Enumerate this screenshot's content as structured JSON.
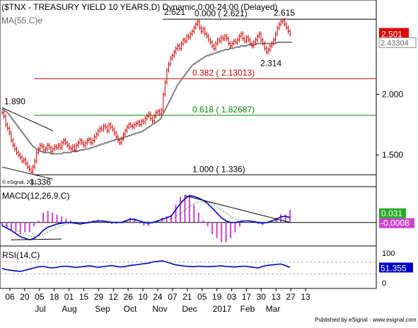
{
  "header": {
    "title": "($TNX - TREASURY YIELD 10 YEARS,D) Dynamic,0:00-24:00 (Delayed)",
    "ma_label": "MA(55,C)e",
    "copyright": "© eSignal, 2011"
  },
  "footer": {
    "credit": "Published by eSignal - www.esignal.com"
  },
  "colors": {
    "price": "#cc0000",
    "ma": "#808080",
    "fib_red": "#cc0000",
    "fib_green": "#008800",
    "macd": "#0000cc",
    "signal": "#33aa33",
    "histogram": "#cc44cc",
    "rsi": "#0000cc",
    "axis_badge_red": "#dd0000",
    "axis_badge_green": "#22aa22",
    "axis_badge_blue": "#0000cc"
  },
  "chart_data": [
    {
      "type": "candlestick",
      "title": "($TNX - TREASURY YIELD 10 YEARS,D) Dynamic,0:00-24:00 (Delayed)",
      "ylim": [
        1.25,
        2.75
      ],
      "y_ticks": [
        "1.500",
        "2.000"
      ],
      "last_price": "2.501",
      "ma_last": "2.43304",
      "x_ticks": [
        "06",
        "20",
        "05",
        "18",
        "01",
        "15",
        "29",
        "12",
        "26",
        "10",
        "24",
        "07",
        "21",
        "05",
        "19",
        "03",
        "17",
        "30",
        "13",
        "27",
        "13"
      ],
      "month_labels": [
        "Jul",
        "Aug",
        "Sep",
        "Oct",
        "Nov",
        "Dec",
        "2017",
        "Feb",
        "Mar"
      ],
      "series": [
        {
          "name": "$TNX",
          "close": [
            1.85,
            1.82,
            1.75,
            1.72,
            1.68,
            1.62,
            1.58,
            1.55,
            1.52,
            1.5,
            1.48,
            1.45,
            1.46,
            1.43,
            1.4,
            1.38,
            1.36,
            1.4,
            1.45,
            1.52,
            1.55,
            1.58,
            1.57,
            1.54,
            1.55,
            1.58,
            1.56,
            1.53,
            1.55,
            1.57,
            1.56,
            1.58,
            1.56,
            1.6,
            1.62,
            1.6,
            1.58,
            1.56,
            1.55,
            1.57,
            1.54,
            1.58,
            1.6,
            1.62,
            1.6,
            1.58,
            1.6,
            1.62,
            1.63,
            1.6,
            1.62,
            1.65,
            1.67,
            1.7,
            1.72,
            1.71,
            1.74,
            1.73,
            1.7,
            1.75,
            1.73,
            1.71,
            1.68,
            1.65,
            1.62,
            1.6,
            1.63,
            1.67,
            1.7,
            1.73,
            1.75,
            1.74,
            1.73,
            1.75,
            1.76,
            1.77,
            1.75,
            1.78,
            1.77,
            1.8,
            1.82,
            1.84,
            1.8,
            1.78,
            1.82,
            1.85,
            1.86,
            1.84,
            1.87,
            2.0,
            2.1,
            2.2,
            2.25,
            2.3,
            2.32,
            2.35,
            2.38,
            2.4,
            2.38,
            2.42,
            2.45,
            2.44,
            2.48,
            2.47,
            2.5,
            2.52,
            2.55,
            2.58,
            2.6,
            2.55,
            2.52,
            2.54,
            2.5,
            2.48,
            2.45,
            2.43,
            2.4,
            2.38,
            2.42,
            2.45,
            2.44,
            2.47,
            2.46,
            2.48,
            2.46,
            2.42,
            2.4,
            2.42,
            2.44,
            2.43,
            2.45,
            2.48,
            2.5,
            2.46,
            2.44,
            2.47,
            2.45,
            2.42,
            2.4,
            2.43,
            2.45,
            2.48,
            2.5,
            2.45,
            2.42,
            2.38,
            2.35,
            2.37,
            2.4,
            2.42,
            2.45,
            2.5,
            2.55,
            2.58,
            2.6,
            2.61,
            2.58,
            2.55,
            2.52,
            2.5
          ]
        },
        {
          "name": "MA(55,C)e",
          "values": [
            1.88,
            1.87,
            1.86,
            1.85,
            1.83,
            1.81,
            1.79,
            1.77,
            1.75,
            1.73,
            1.71,
            1.69,
            1.67,
            1.65,
            1.63,
            1.61,
            1.59,
            1.57,
            1.56,
            1.55,
            1.54,
            1.53,
            1.53,
            1.52,
            1.52,
            1.52,
            1.52,
            1.51,
            1.51,
            1.51,
            1.51,
            1.51,
            1.51,
            1.51,
            1.52,
            1.52,
            1.52,
            1.52,
            1.52,
            1.53,
            1.53,
            1.53,
            1.53,
            1.54,
            1.54,
            1.54,
            1.55,
            1.55,
            1.55,
            1.56,
            1.56,
            1.57,
            1.57,
            1.58,
            1.58,
            1.59,
            1.59,
            1.6,
            1.6,
            1.61,
            1.61,
            1.62,
            1.62,
            1.63,
            1.63,
            1.63,
            1.64,
            1.64,
            1.65,
            1.65,
            1.66,
            1.66,
            1.67,
            1.67,
            1.68,
            1.68,
            1.69,
            1.69,
            1.7,
            1.71,
            1.72,
            1.73,
            1.74,
            1.75,
            1.76,
            1.77,
            1.78,
            1.79,
            1.81,
            1.84,
            1.87,
            1.9,
            1.93,
            1.96,
            1.99,
            2.02,
            2.05,
            2.08,
            2.1,
            2.12,
            2.14,
            2.16,
            2.18,
            2.2,
            2.22,
            2.24,
            2.25,
            2.26,
            2.27,
            2.28,
            2.29,
            2.3,
            2.31,
            2.32,
            2.32,
            2.33,
            2.33,
            2.34,
            2.34,
            2.35,
            2.35,
            2.36,
            2.36,
            2.37,
            2.37,
            2.37,
            2.38,
            2.38,
            2.38,
            2.39,
            2.39,
            2.39,
            2.4,
            2.4,
            2.4,
            2.4,
            2.41,
            2.41,
            2.41,
            2.41,
            2.41,
            2.42,
            2.42,
            2.42,
            2.42,
            2.42,
            2.42,
            2.42,
            2.42,
            2.42,
            2.42,
            2.42,
            2.43,
            2.43,
            2.43,
            2.43,
            2.43,
            2.43,
            2.43,
            2.43,
            2.43
          ]
        }
      ],
      "annotations": [
        {
          "text": "1.890",
          "value": 1.89
        },
        {
          "text": "1.336",
          "value": 1.336
        },
        {
          "text": "2.621",
          "value": 2.621
        },
        {
          "text": "2.615",
          "value": 2.615
        },
        {
          "text": "2.314",
          "value": 2.314
        }
      ],
      "levels": [
        {
          "label": "0.000 ( 2.621)",
          "value": 2.621,
          "color": "#000000"
        },
        {
          "label": "0.382 ( 2.13013)",
          "value": 2.13013,
          "color": "#cc0000"
        },
        {
          "label": "0.618 ( 1.82687)",
          "value": 1.82687,
          "color": "#008800"
        },
        {
          "label": "1.000 ( 1.336)",
          "value": 1.336,
          "color": "#000000"
        }
      ]
    },
    {
      "type": "line",
      "title": "MACD(12,26,9,C)",
      "last_macd": "0.031",
      "last_signal": "-0.0008",
      "ylim": [
        -0.14,
        0.2
      ],
      "series": [
        {
          "name": "MACD",
          "values": [
            -0.02,
            -0.035,
            -0.05,
            -0.07,
            -0.09,
            -0.1,
            -0.11,
            -0.1,
            -0.08,
            -0.05,
            -0.03,
            -0.02,
            -0.01,
            -0.005,
            0.0,
            0.0,
            -0.005,
            -0.01,
            -0.005,
            0.0,
            0.005,
            0.01,
            0.01,
            0.005,
            0.0,
            0.0,
            0.0,
            0.01,
            0.02,
            0.02,
            0.01,
            0.0,
            -0.005,
            0.0,
            0.01,
            0.02,
            0.03,
            0.04,
            0.08,
            0.12,
            0.15,
            0.17,
            0.165,
            0.155,
            0.14,
            0.12,
            0.09,
            0.06,
            0.03,
            0.01,
            0.0,
            0.0,
            0.005,
            0.01,
            0.01,
            0.005,
            0.0,
            -0.005,
            0.0,
            0.01,
            0.02,
            0.035,
            0.04,
            0.031
          ]
        },
        {
          "name": "Signal",
          "values": [
            -0.01,
            -0.02,
            -0.03,
            -0.045,
            -0.06,
            -0.075,
            -0.085,
            -0.09,
            -0.085,
            -0.075,
            -0.06,
            -0.045,
            -0.03,
            -0.02,
            -0.01,
            -0.005,
            -0.005,
            -0.005,
            -0.005,
            -0.003,
            0.0,
            0.003,
            0.006,
            0.006,
            0.004,
            0.003,
            0.002,
            0.004,
            0.008,
            0.012,
            0.012,
            0.008,
            0.004,
            0.002,
            0.004,
            0.008,
            0.014,
            0.02,
            0.035,
            0.055,
            0.08,
            0.1,
            0.12,
            0.13,
            0.135,
            0.13,
            0.12,
            0.1,
            0.08,
            0.06,
            0.04,
            0.025,
            0.015,
            0.01,
            0.008,
            0.006,
            0.004,
            0.002,
            0.002,
            0.004,
            0.008,
            0.014,
            0.02,
            -0.0008
          ]
        }
      ]
    },
    {
      "type": "line",
      "title": "RSI(14,C)",
      "last_value": "51.355",
      "ylim": [
        0,
        100
      ],
      "y_ticks": [
        "100",
        "0"
      ],
      "series": [
        {
          "name": "RSI",
          "values": [
            48,
            44,
            42,
            40,
            38,
            42,
            46,
            50,
            54,
            55,
            52,
            50,
            52,
            55,
            56,
            54,
            52,
            53,
            55,
            57,
            55,
            52,
            54,
            56,
            58,
            55,
            53,
            55,
            58,
            60,
            62,
            64,
            66,
            70,
            72,
            74,
            70,
            65,
            60,
            58,
            56,
            55,
            54,
            56,
            55,
            54,
            55,
            56,
            57,
            55,
            54,
            53,
            55,
            56,
            54,
            52,
            50,
            55,
            58,
            60,
            62,
            63,
            58,
            51.355
          ]
        }
      ]
    }
  ]
}
